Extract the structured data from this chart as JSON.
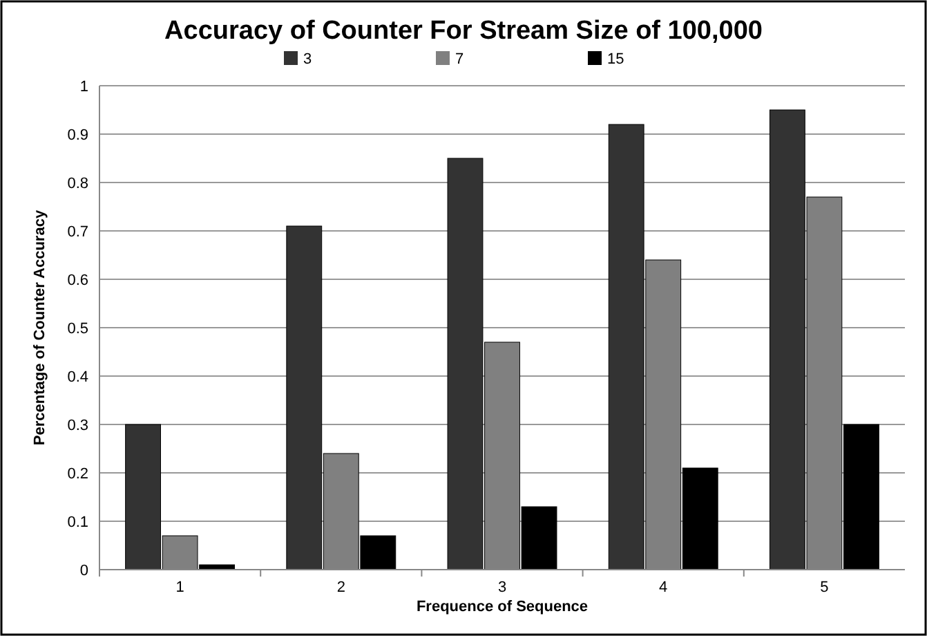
{
  "chart_data": {
    "type": "bar",
    "title": "Accuracy of Counter For Stream Size of 100,000",
    "xlabel": "Frequence of Sequence",
    "ylabel": "Percentage of Counter Accuracy",
    "categories": [
      "1",
      "2",
      "3",
      "4",
      "5"
    ],
    "series": [
      {
        "name": "3",
        "color": "#333333",
        "values": [
          0.3,
          0.71,
          0.85,
          0.92,
          0.95
        ]
      },
      {
        "name": "7",
        "color": "#808080",
        "values": [
          0.07,
          0.24,
          0.47,
          0.64,
          0.77
        ]
      },
      {
        "name": "15",
        "color": "#000000",
        "values": [
          0.01,
          0.07,
          0.13,
          0.21,
          0.3
        ]
      }
    ],
    "ylim": [
      0,
      1
    ],
    "yticks": [
      0,
      0.1,
      0.2,
      0.3,
      0.4,
      0.5,
      0.6,
      0.7,
      0.8,
      0.9,
      1
    ],
    "grid": "y",
    "legend": "top"
  }
}
